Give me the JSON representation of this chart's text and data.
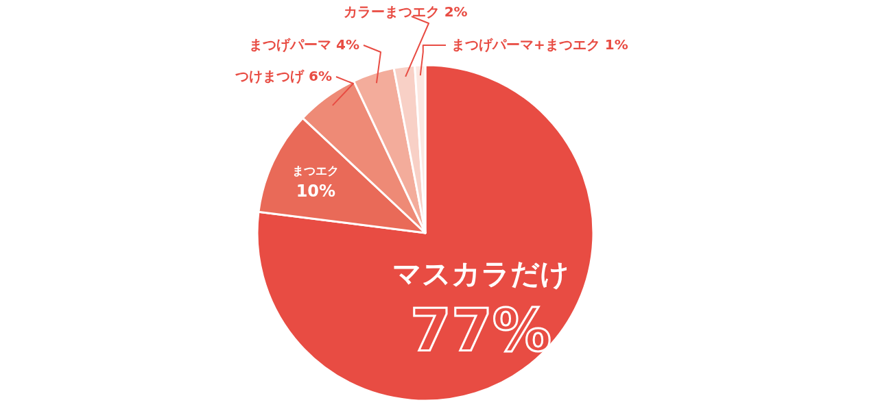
{
  "chart_data": {
    "type": "pie",
    "categories": [
      "マスカラだけ",
      "まつエク",
      "つけまつげ",
      "まつげパーマ",
      "カラーまつエク",
      "まつげパーマ+まつエク"
    ],
    "values": [
      77,
      10,
      6,
      4,
      2,
      1
    ],
    "colors": [
      "#e84c43",
      "#e96a58",
      "#ee8a76",
      "#f3ac9b",
      "#f8d0c6",
      "#fce8e2"
    ],
    "value_labels": [
      "77%",
      "10%",
      "6%",
      "4%",
      "2%",
      "1%"
    ]
  }
}
